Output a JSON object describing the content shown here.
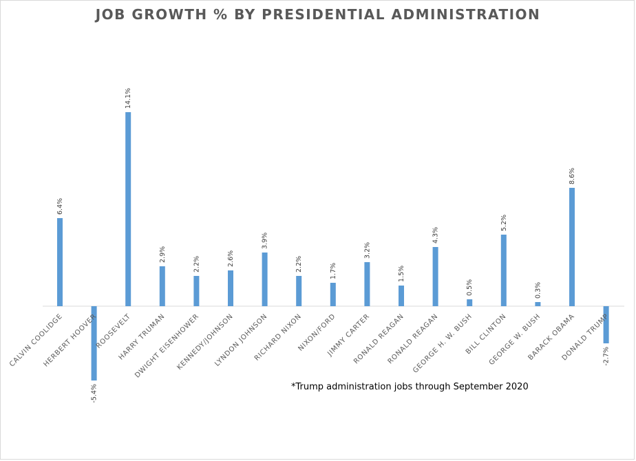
{
  "chart_data": {
    "type": "bar",
    "title": "JOB GROWTH % BY PRESIDENTIAL ADMINISTRATION",
    "xlabel": "",
    "ylabel": "",
    "ylim": [
      -8,
      16
    ],
    "grid": false,
    "legend": "none",
    "categories": [
      "CALVIN COOLIDGE",
      "HERBERT HOOVER",
      "ROOSEVELT",
      "HARRY TRUMAN",
      "DWIGHT EISENHOWER",
      "KENNEDY/JOHNSON",
      "LYNDON JOHNSON",
      "RICHARD NIXON",
      "NIXON/FORD",
      "JIMMY CARTER",
      "RONALD REAGAN",
      "RONALD REAGAN",
      "GEORGE H. W. BUSH",
      "BILL CLINTON",
      "GEORGE W. BUSH",
      "BARACK OBAMA",
      "DONALD TRUMP"
    ],
    "values": [
      6.4,
      -5.4,
      14.1,
      2.9,
      2.2,
      2.6,
      3.9,
      2.2,
      1.7,
      3.2,
      1.5,
      4.3,
      0.5,
      5.2,
      0.3,
      8.6,
      -2.7
    ],
    "data_labels": [
      "6.4%",
      "-5.4%",
      "14.1%",
      "2.9%",
      "2.2%",
      "2.6%",
      "3.9%",
      "2.2%",
      "1.7%",
      "3.2%",
      "1.5%",
      "4.3%",
      "0.5%",
      "5.2%",
      "0.3%",
      "8.6%",
      "-2.7%"
    ],
    "footnote": "*Trump administration jobs through September 2020",
    "colors": {
      "bar": "#5b9bd5",
      "axis": "#d9d9d9",
      "text": "#595959"
    }
  }
}
